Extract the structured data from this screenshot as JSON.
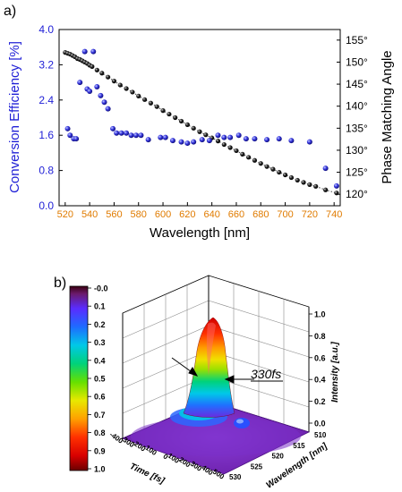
{
  "panel_labels": [
    "a)",
    "b)"
  ],
  "chart_data": [
    {
      "type": "scatter",
      "panel": "a)",
      "xlabel": "Wavelength [nm]",
      "ylabel_left": "Conversion Efficiency  [%]",
      "ylabel_right": "Phase Matching Angle",
      "xlim": [
        515,
        745
      ],
      "ylim_left": [
        0.0,
        4.0
      ],
      "ylim_right": [
        117.4,
        157.4
      ],
      "x_ticks": [
        "520",
        "540",
        "560",
        "580",
        "600",
        "620",
        "640",
        "660",
        "680",
        "700",
        "720",
        "740"
      ],
      "y_left_ticks": [
        "0.0",
        "0.8",
        "1.6",
        "2.4",
        "3.2",
        "4.0"
      ],
      "y_right_ticks": [
        "120°",
        "125°",
        "130°",
        "135°",
        "140°",
        "145°",
        "150°",
        "155°"
      ],
      "y_left_tick_values": [
        0.0,
        0.8,
        1.6,
        2.4,
        3.2,
        4.0
      ],
      "y_right_tick_values": [
        120,
        125,
        130,
        135,
        140,
        145,
        150,
        155
      ],
      "colors": {
        "left_axis": "#1f1fd6",
        "x_axis": "#e07b00",
        "efficiency_marker": "#2b2bd8",
        "angle_marker": "#111111"
      },
      "series": [
        {
          "axis": "left",
          "marker": "blue-sphere",
          "x": [
            522,
            524,
            527,
            529,
            532,
            536,
            538,
            540,
            543,
            546,
            549,
            552,
            555,
            559,
            562,
            566,
            570,
            574,
            578,
            582,
            588,
            598,
            602,
            608,
            615,
            620,
            625,
            632,
            638,
            645,
            650,
            655,
            662,
            668,
            675,
            685,
            695,
            705,
            720,
            733,
            742
          ],
          "y": [
            1.75,
            1.6,
            1.52,
            1.52,
            2.8,
            3.5,
            2.65,
            2.6,
            3.5,
            2.7,
            2.5,
            2.35,
            2.2,
            1.75,
            1.65,
            1.65,
            1.65,
            1.6,
            1.6,
            1.6,
            1.5,
            1.55,
            1.55,
            1.48,
            1.45,
            1.42,
            1.45,
            1.5,
            1.48,
            1.6,
            1.55,
            1.55,
            1.6,
            1.52,
            1.52,
            1.5,
            1.52,
            1.48,
            1.45,
            0.85,
            0.45
          ]
        },
        {
          "axis": "right",
          "marker": "black-sphere",
          "x": [
            520,
            522,
            524,
            526,
            528,
            530,
            532,
            534,
            536,
            538,
            540,
            542,
            546,
            550,
            555,
            560,
            565,
            570,
            575,
            580,
            585,
            590,
            595,
            600,
            605,
            610,
            615,
            620,
            625,
            630,
            635,
            640,
            645,
            650,
            655,
            660,
            665,
            670,
            675,
            680,
            685,
            690,
            695,
            700,
            705,
            710,
            715,
            720,
            725,
            733,
            742
          ],
          "y": [
            152.2,
            152.0,
            151.8,
            151.5,
            151.2,
            150.8,
            150.6,
            150.3,
            150.0,
            149.7,
            149.3,
            149.0,
            148.2,
            147.5,
            146.6,
            145.7,
            144.8,
            144.0,
            143.2,
            142.3,
            141.5,
            140.7,
            139.9,
            139.0,
            138.2,
            137.4,
            136.6,
            135.8,
            135.0,
            134.2,
            133.5,
            132.8,
            132.1,
            131.3,
            130.6,
            129.9,
            129.1,
            128.4,
            127.7,
            127.0,
            126.3,
            125.7,
            125.0,
            124.4,
            123.8,
            123.2,
            122.7,
            122.2,
            121.8,
            121.0,
            120.3
          ]
        }
      ]
    },
    {
      "type": "surface3d",
      "panel": "b)",
      "xlabel": "Time [fs]",
      "ylabel": "Wavelength [nm]",
      "zlabel": "Intensity [a.u.]",
      "annotation": "330fs",
      "x_ticks": [
        "-400",
        "-300",
        "-200",
        "-100",
        "0",
        "100",
        "200",
        "300",
        "400",
        "500"
      ],
      "y_ticks": [
        "510",
        "515",
        "520",
        "525",
        "530"
      ],
      "z_ticks": [
        "0.0",
        "0.2",
        "0.4",
        "0.6",
        "0.8",
        "1.0"
      ],
      "colorbar_ticks": [
        "-0.0",
        "0.1",
        "0.2",
        "0.3",
        "0.4",
        "0.5",
        "0.6",
        "0.7",
        "0.8",
        "0.9",
        "1.0"
      ],
      "peak": {
        "time_fs": 0,
        "wavelength_nm": 517,
        "intensity": 0.95,
        "fwhm_fs": 330
      },
      "secondary_peak": {
        "time_fs": 250,
        "wavelength_nm": 518,
        "intensity": 0.1
      }
    }
  ]
}
